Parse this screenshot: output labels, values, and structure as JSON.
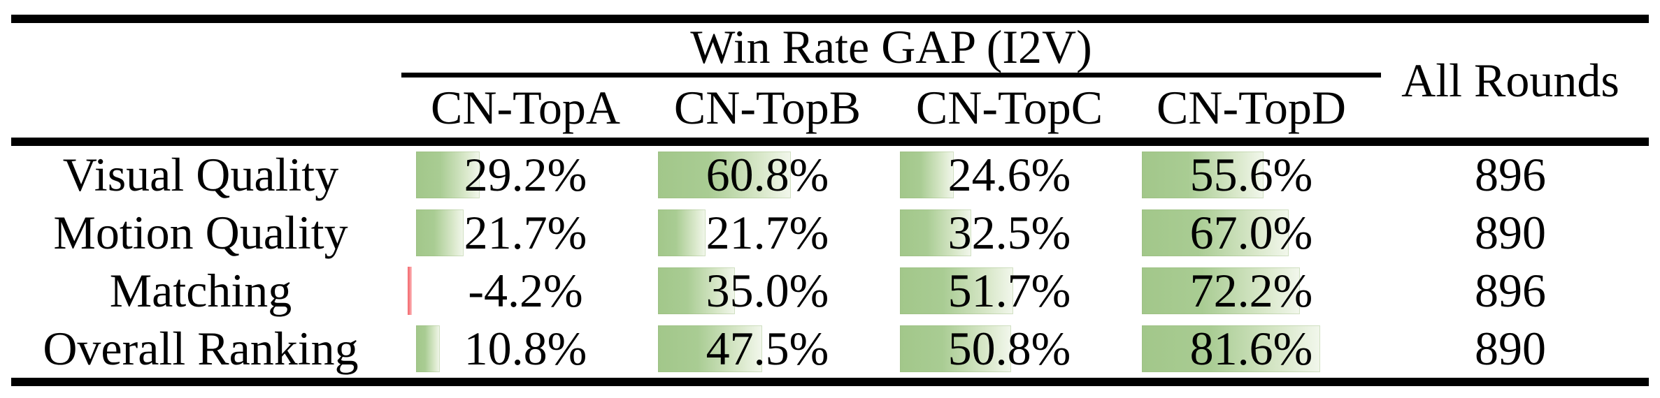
{
  "table": {
    "title": "Win Rate GAP (I2V)",
    "all_rounds_label": "All Rounds",
    "columns": [
      "CN-TopA",
      "CN-TopB",
      "CN-TopC",
      "CN-TopD"
    ],
    "rows": [
      {
        "label": "Visual Quality",
        "values": [
          29.2,
          60.8,
          24.6,
          55.6
        ],
        "display": [
          "29.2%",
          "60.8%",
          "24.6%",
          "55.6%"
        ],
        "all_rounds": "896"
      },
      {
        "label": "Motion Quality",
        "values": [
          21.7,
          21.7,
          32.5,
          67.0
        ],
        "display": [
          "21.7%",
          "21.7%",
          "32.5%",
          "67.0%"
        ],
        "all_rounds": "890"
      },
      {
        "label": "Matching",
        "values": [
          -4.2,
          35.0,
          51.7,
          72.2
        ],
        "display": [
          "-4.2%",
          "35.0%",
          "51.7%",
          "72.2%"
        ],
        "all_rounds": "896"
      },
      {
        "label": "Overall Ranking",
        "values": [
          10.8,
          47.5,
          50.8,
          81.6
        ],
        "display": [
          "10.8%",
          "47.5%",
          "50.8%",
          "81.6%"
        ],
        "all_rounds": "890"
      }
    ]
  },
  "colors": {
    "bar_positive": "#a2c78a",
    "bar_negative": "#f3696e",
    "rule": "#000000",
    "text": "#000000"
  },
  "chart_data": {
    "type": "table",
    "title": "Win Rate GAP (I2V)",
    "categories": [
      "Visual Quality",
      "Motion Quality",
      "Matching",
      "Overall Ranking"
    ],
    "series": [
      {
        "name": "CN-TopA",
        "values": [
          29.2,
          21.7,
          -4.2,
          10.8
        ]
      },
      {
        "name": "CN-TopB",
        "values": [
          60.8,
          21.7,
          35.0,
          47.5
        ]
      },
      {
        "name": "CN-TopC",
        "values": [
          24.6,
          32.5,
          51.7,
          50.8
        ]
      },
      {
        "name": "CN-TopD",
        "values": [
          55.6,
          67.0,
          72.2,
          81.6
        ]
      }
    ],
    "extra_column": {
      "name": "All Rounds",
      "values": [
        896,
        890,
        896,
        890
      ]
    },
    "value_unit": "%",
    "bar_scale": "cell data-bars, 100% = full cell width (313px)"
  }
}
